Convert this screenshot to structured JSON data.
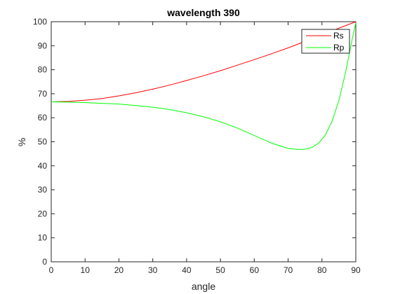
{
  "chart_data": {
    "type": "line",
    "title": "wavelength  390",
    "xlabel": "angle",
    "ylabel": "%",
    "xlim": [
      0,
      90
    ],
    "ylim": [
      0,
      100
    ],
    "xticks": [
      "0",
      "10",
      "20",
      "30",
      "40",
      "50",
      "60",
      "70",
      "80",
      "90"
    ],
    "yticks": [
      "0",
      "10",
      "20",
      "30",
      "40",
      "50",
      "60",
      "70",
      "80",
      "90",
      "100"
    ],
    "grid": false,
    "legend_position": "top-right",
    "series": [
      {
        "name": "Rs",
        "color": "#ff0000",
        "x": [
          0,
          5,
          10,
          15,
          20,
          25,
          30,
          35,
          40,
          45,
          50,
          55,
          60,
          65,
          70,
          75,
          80,
          85,
          90
        ],
        "y": [
          66.6,
          66.8,
          67.3,
          68.0,
          69.1,
          70.4,
          71.9,
          73.6,
          75.5,
          77.5,
          79.6,
          81.9,
          84.2,
          86.6,
          89.1,
          91.8,
          94.5,
          97.3,
          100.0
        ]
      },
      {
        "name": "Rp",
        "color": "#00ff00",
        "x": [
          0,
          5,
          10,
          15,
          20,
          25,
          30,
          35,
          40,
          45,
          50,
          55,
          60,
          65,
          70,
          73,
          75,
          77,
          79,
          81,
          83,
          85,
          87,
          88,
          89,
          90
        ],
        "y": [
          66.6,
          66.5,
          66.3,
          66.0,
          65.7,
          65.1,
          64.4,
          63.4,
          62.1,
          60.4,
          58.3,
          55.7,
          52.6,
          49.5,
          47.2,
          46.8,
          46.9,
          47.6,
          49.4,
          52.8,
          58.6,
          67.2,
          79.0,
          86.1,
          93.2,
          99.5
        ]
      }
    ]
  }
}
